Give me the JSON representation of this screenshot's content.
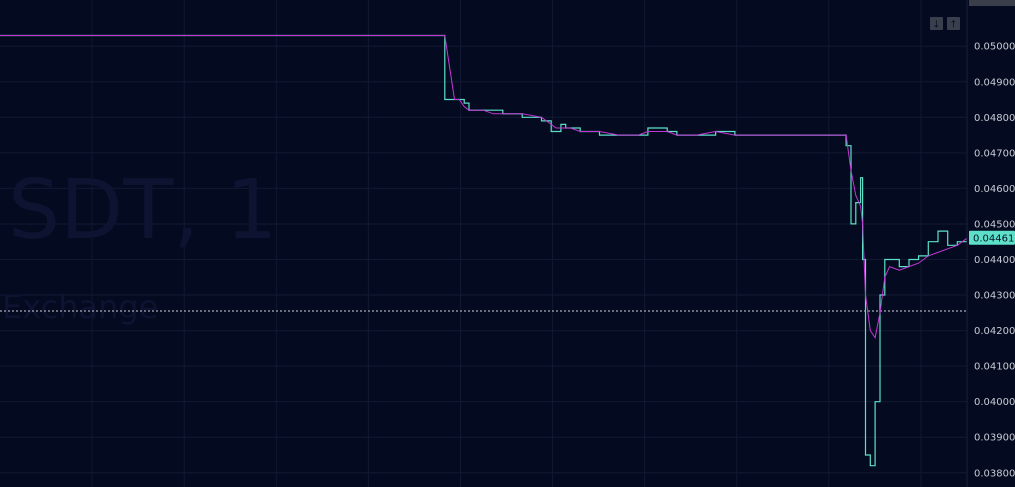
{
  "chart_data": {
    "type": "line",
    "title": "",
    "watermark": "SDT, 1",
    "watermark_sub": "Exchange",
    "ylim": [
      0.0376,
      0.0513
    ],
    "y_ticks": [
      "0.05000",
      "0.04900",
      "0.04800",
      "0.04700",
      "0.04600",
      "0.04500",
      "0.04400",
      "0.04300",
      "0.04200",
      "0.04100",
      "0.04000",
      "0.03900",
      "0.03800"
    ],
    "last_price": "0.04461",
    "last_price_value": 0.04461,
    "reference_line": 0.04255,
    "x": [
      0,
      0.2,
      0.41,
      0.46,
      0.47,
      0.475,
      0.48,
      0.485,
      0.49,
      0.5,
      0.51,
      0.52,
      0.54,
      0.56,
      0.57,
      0.575,
      0.58,
      0.585,
      0.59,
      0.6,
      0.62,
      0.64,
      0.66,
      0.67,
      0.68,
      0.69,
      0.7,
      0.72,
      0.74,
      0.76,
      0.78,
      0.8,
      0.82,
      0.84,
      0.86,
      0.87,
      0.875,
      0.88,
      0.885,
      0.89,
      0.892,
      0.895,
      0.9,
      0.905,
      0.91,
      0.915,
      0.92,
      0.93,
      0.94,
      0.95,
      0.96,
      0.97,
      0.98,
      0.99,
      1.0
    ],
    "series": [
      {
        "color": "#5ee0c8",
        "values": [
          0.0503,
          0.0503,
          0.0503,
          0.0485,
          0.0485,
          0.0485,
          0.0484,
          0.0482,
          0.0482,
          0.0482,
          0.0482,
          0.0481,
          0.048,
          0.0479,
          0.0476,
          0.0476,
          0.0478,
          0.0477,
          0.0477,
          0.0476,
          0.0475,
          0.0475,
          0.0475,
          0.0477,
          0.0477,
          0.0476,
          0.0475,
          0.0475,
          0.0476,
          0.0475,
          0.0475,
          0.0475,
          0.0475,
          0.0475,
          0.0475,
          0.0475,
          0.0472,
          0.045,
          0.0456,
          0.0463,
          0.044,
          0.0385,
          0.0382,
          0.04,
          0.043,
          0.044,
          0.044,
          0.0438,
          0.044,
          0.0441,
          0.0445,
          0.0448,
          0.0444,
          0.0445,
          0.0446
        ]
      },
      {
        "color": "#c437d6",
        "values": [
          0.0503,
          0.0503,
          0.0503,
          0.0503,
          0.0485,
          0.0485,
          0.0483,
          0.0482,
          0.0482,
          0.0482,
          0.0481,
          0.0481,
          0.0481,
          0.048,
          0.0478,
          0.0477,
          0.0477,
          0.0477,
          0.0477,
          0.0476,
          0.0476,
          0.0475,
          0.0475,
          0.0476,
          0.0476,
          0.0476,
          0.0475,
          0.0475,
          0.0476,
          0.0475,
          0.0475,
          0.0475,
          0.0475,
          0.0475,
          0.0475,
          0.0475,
          0.0475,
          0.0465,
          0.0458,
          0.0455,
          0.045,
          0.043,
          0.042,
          0.0418,
          0.0425,
          0.0435,
          0.0438,
          0.0437,
          0.0438,
          0.0439,
          0.0441,
          0.0442,
          0.0443,
          0.0444,
          0.0446
        ]
      }
    ]
  },
  "controls": {
    "down_icon": "arrow-down-icon",
    "up_icon": "arrow-up-icon",
    "down_glyph": "↓",
    "up_glyph": "↑"
  }
}
